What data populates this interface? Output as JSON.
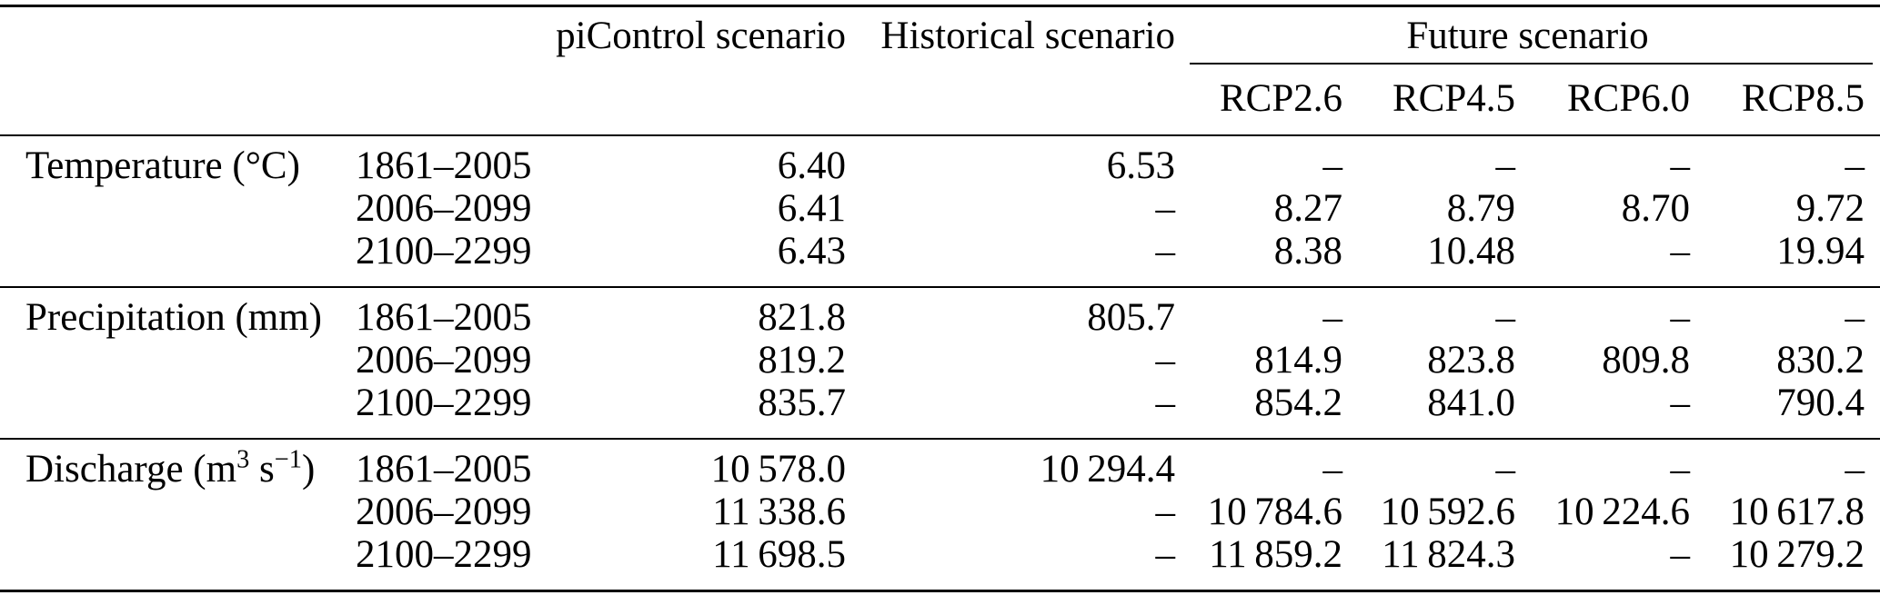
{
  "meta": {
    "background_color": "#ffffff",
    "text_color": "#000000",
    "rule_color": "#000000"
  },
  "header": {
    "picontrol": "piControl scenario",
    "historical": "Historical scenario",
    "future": "Future scenario",
    "rcp": [
      "RCP2.6",
      "RCP4.5",
      "RCP6.0",
      "RCP8.5"
    ]
  },
  "sections": [
    {
      "label_text": "Temperature (°C)",
      "label_segments": [
        {
          "t": "Temperature (°C)"
        }
      ],
      "rows": [
        {
          "period": "1861–2005",
          "values": [
            "6.40",
            "6.53",
            "–",
            "–",
            "–",
            "–"
          ]
        },
        {
          "period": "2006–2099",
          "values": [
            "6.41",
            "–",
            "8.27",
            "8.79",
            "8.70",
            "9.72"
          ]
        },
        {
          "period": "2100–2299",
          "values": [
            "6.43",
            "–",
            "8.38",
            "10.48",
            "–",
            "19.94"
          ]
        }
      ]
    },
    {
      "label_text": "Precipitation (mm)",
      "label_segments": [
        {
          "t": "Precipitation (mm)"
        }
      ],
      "rows": [
        {
          "period": "1861–2005",
          "values": [
            "821.8",
            "805.7",
            "–",
            "–",
            "–",
            "–"
          ]
        },
        {
          "period": "2006–2099",
          "values": [
            "819.2",
            "–",
            "814.9",
            "823.8",
            "809.8",
            "830.2"
          ]
        },
        {
          "period": "2100–2299",
          "values": [
            "835.7",
            "–",
            "854.2",
            "841.0",
            "–",
            "790.4"
          ]
        }
      ]
    },
    {
      "label_text": "Discharge (m3 s−1)",
      "label_segments": [
        {
          "t": "Discharge (m"
        },
        {
          "t": "3",
          "sup": true
        },
        {
          "t": " s"
        },
        {
          "t": "−1",
          "sup": true
        },
        {
          "t": ")"
        }
      ],
      "rows": [
        {
          "period": "1861–2005",
          "values": [
            "10 578.0",
            "10 294.4",
            "–",
            "–",
            "–",
            "–"
          ]
        },
        {
          "period": "2006–2099",
          "values": [
            "11 338.6",
            "–",
            "10 784.6",
            "10 592.6",
            "10 224.6",
            "10 617.8"
          ]
        },
        {
          "period": "2100–2299",
          "values": [
            "11 698.5",
            "–",
            "11 859.2",
            "11 824.3",
            "–",
            "10 279.2"
          ]
        }
      ]
    }
  ]
}
